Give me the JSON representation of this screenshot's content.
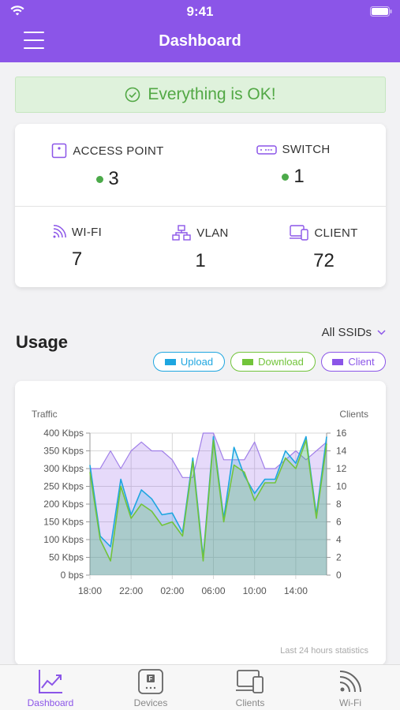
{
  "status_bar": {
    "time": "9:41"
  },
  "header": {
    "title": "Dashboard"
  },
  "banner": {
    "text": "Everything is OK!"
  },
  "summary": {
    "access_point": {
      "label": "ACCESS POINT",
      "value": "3"
    },
    "switch": {
      "label": "SWITCH",
      "value": "1"
    },
    "wifi": {
      "label": "WI-FI",
      "value": "7"
    },
    "vlan": {
      "label": "VLAN",
      "value": "1"
    },
    "client": {
      "label": "CLIENT",
      "value": "72"
    }
  },
  "usage": {
    "title": "Usage",
    "ssid_filter": "All SSIDs",
    "legend": {
      "upload": "Upload",
      "download": "Download",
      "client": "Client"
    }
  },
  "colors": {
    "accent": "#8b55e8",
    "upload": "#1ea6e0",
    "download": "#72c43a",
    "client": "#8b55e8",
    "ok_green": "#52a845"
  },
  "chart_data": {
    "type": "area",
    "left_axis_title": "Traffic",
    "right_axis_title": "Clients",
    "left_ticks": [
      "0 bps",
      "50 Kbps",
      "100 Kbps",
      "150 Kbps",
      "200 Kbps",
      "250 Kbps",
      "300 Kbps",
      "350 Kbps",
      "400 Kbps"
    ],
    "right_ticks": [
      "0",
      "2",
      "4",
      "6",
      "8",
      "10",
      "12",
      "14",
      "16"
    ],
    "x_ticks": [
      "18:00",
      "22:00",
      "02:00",
      "06:00",
      "10:00",
      "14:00"
    ],
    "ylim_left": [
      0,
      400
    ],
    "ylim_right": [
      0,
      16
    ],
    "x": [
      "18:00",
      "19:00",
      "20:00",
      "21:00",
      "22:00",
      "23:00",
      "00:00",
      "01:00",
      "02:00",
      "03:00",
      "04:00",
      "05:00",
      "06:00",
      "07:00",
      "08:00",
      "09:00",
      "10:00",
      "11:00",
      "12:00",
      "13:00",
      "14:00",
      "15:00",
      "16:00",
      "17:00"
    ],
    "series": [
      {
        "name": "Client",
        "axis": "right",
        "values": [
          12,
          12,
          14,
          12,
          14,
          15,
          14,
          14,
          13,
          11,
          11,
          16,
          16,
          13,
          13,
          13,
          15,
          12,
          12,
          13,
          14,
          13,
          14,
          15
        ]
      },
      {
        "name": "Upload",
        "axis": "left",
        "values": [
          310,
          110,
          80,
          270,
          170,
          240,
          215,
          170,
          175,
          120,
          330,
          50,
          390,
          160,
          360,
          280,
          230,
          270,
          270,
          350,
          315,
          390,
          170,
          390
        ]
      },
      {
        "name": "Download",
        "axis": "left",
        "values": [
          290,
          100,
          40,
          250,
          160,
          200,
          180,
          140,
          150,
          110,
          320,
          40,
          380,
          150,
          310,
          290,
          210,
          260,
          260,
          330,
          300,
          380,
          160,
          370
        ]
      }
    ],
    "footnote": "Last 24 hours statistics"
  },
  "tabs": [
    {
      "label": "Dashboard",
      "icon": "chart-icon"
    },
    {
      "label": "Devices",
      "icon": "device-icon"
    },
    {
      "label": "Clients",
      "icon": "clients-icon"
    },
    {
      "label": "Wi-Fi",
      "icon": "wifi-icon"
    }
  ]
}
